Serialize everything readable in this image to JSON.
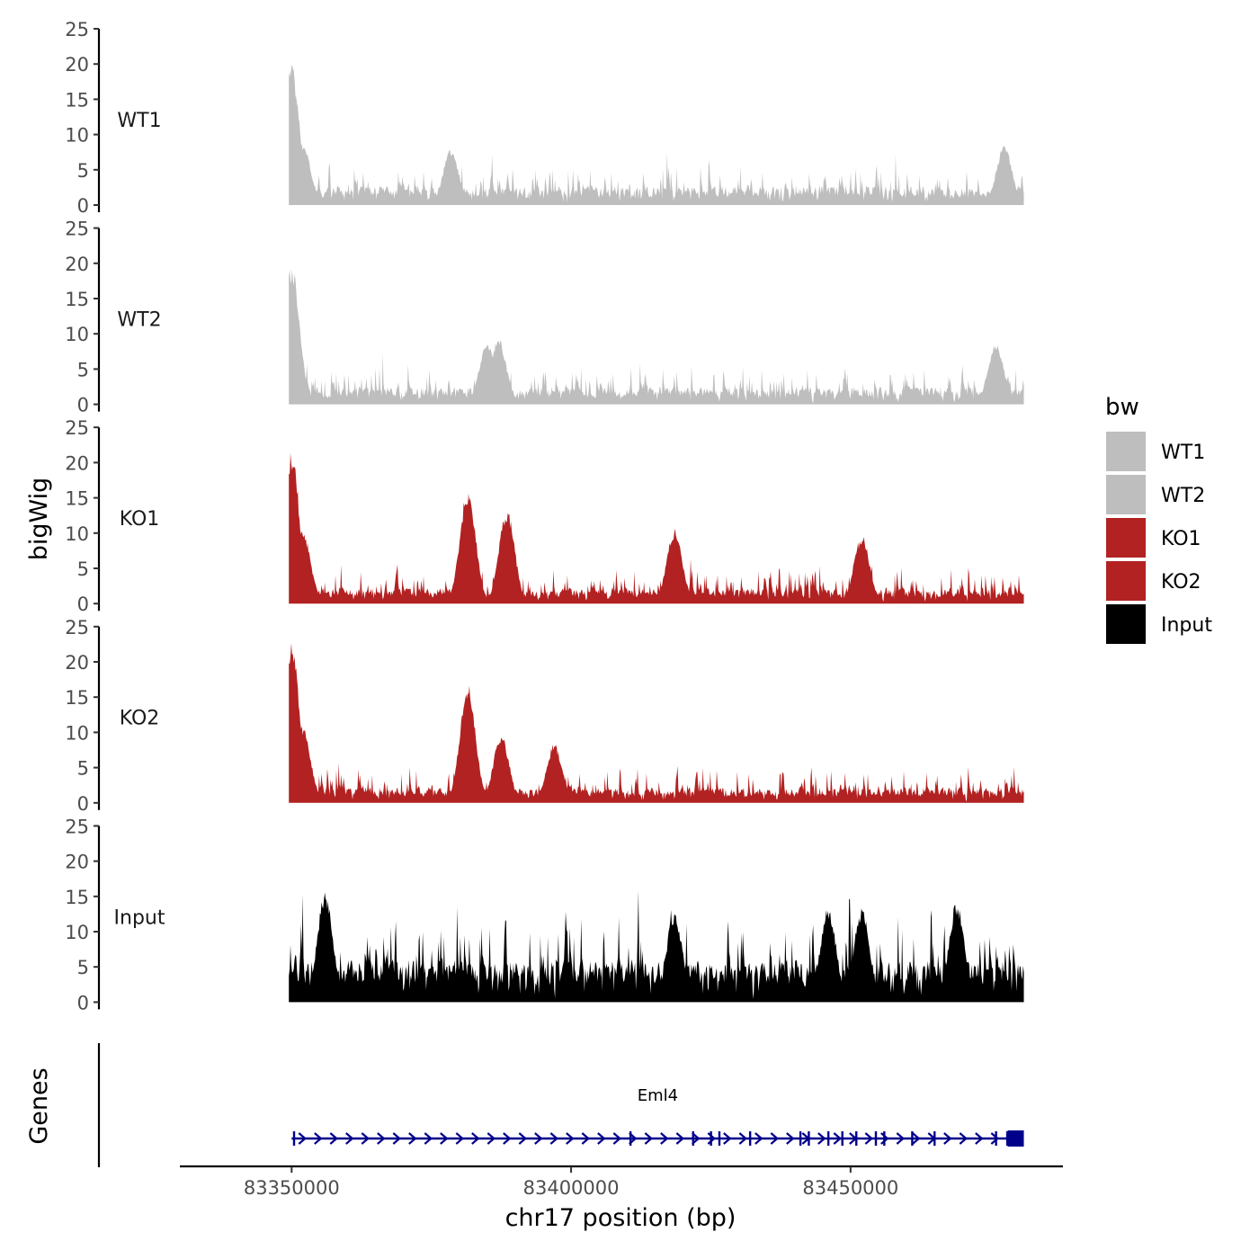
{
  "chart_data": {
    "type": "area",
    "ylabel": "bigWig",
    "xlabel": "chr17 position (bp)",
    "genes_label": "Genes",
    "gene_name": "Eml4",
    "y_ticks": [
      "0",
      "5",
      "10",
      "15",
      "20",
      "25"
    ],
    "ylim": [
      0,
      25
    ],
    "xlim": [
      83330000,
      83488000
    ],
    "data_start": 83349500,
    "data_end": 83481000,
    "x_ticks": [
      {
        "value": 83350000,
        "label": "83350000"
      },
      {
        "value": 83400000,
        "label": "83400000"
      },
      {
        "value": 83450000,
        "label": "83450000"
      }
    ],
    "legend": {
      "title": "bw",
      "items": [
        {
          "label": "WT1",
          "color": "#bebebe"
        },
        {
          "label": "WT2",
          "color": "#bebebe"
        },
        {
          "label": "KO1",
          "color": "#b22222"
        },
        {
          "label": "KO2",
          "color": "#b22222"
        },
        {
          "label": "Input",
          "color": "#000000"
        }
      ]
    },
    "series": [
      {
        "name": "WT1",
        "color": "#bebebe",
        "base": 2.2,
        "noise": 2.8,
        "seed": 11,
        "peaks": [
          {
            "x": 83350000,
            "y": 20.2
          },
          {
            "x": 83352000,
            "y": 9.0
          },
          {
            "x": 83477500,
            "y": 8.5
          },
          {
            "x": 83378500,
            "y": 8.0
          }
        ]
      },
      {
        "name": "WT2",
        "color": "#bebebe",
        "base": 2.0,
        "noise": 2.6,
        "seed": 23,
        "peaks": [
          {
            "x": 83350000,
            "y": 20.0
          },
          {
            "x": 83387000,
            "y": 9.5
          },
          {
            "x": 83385000,
            "y": 9.0
          },
          {
            "x": 83476000,
            "y": 8.8
          }
        ]
      },
      {
        "name": "KO1",
        "color": "#b22222",
        "base": 1.8,
        "noise": 2.6,
        "seed": 37,
        "peaks": [
          {
            "x": 83350000,
            "y": 22.0
          },
          {
            "x": 83352000,
            "y": 10.5
          },
          {
            "x": 83381500,
            "y": 16.5
          },
          {
            "x": 83388500,
            "y": 13.5
          },
          {
            "x": 83418500,
            "y": 10.7
          },
          {
            "x": 83452000,
            "y": 9.8
          }
        ]
      },
      {
        "name": "KO2",
        "color": "#b22222",
        "base": 1.8,
        "noise": 2.6,
        "seed": 53,
        "peaks": [
          {
            "x": 83350000,
            "y": 23.8
          },
          {
            "x": 83352000,
            "y": 11.0
          },
          {
            "x": 83381500,
            "y": 17.2
          },
          {
            "x": 83387500,
            "y": 9.8
          },
          {
            "x": 83397000,
            "y": 8.5
          }
        ]
      },
      {
        "name": "Input",
        "color": "#000000",
        "base": 5.0,
        "noise": 6.0,
        "seed": 71,
        "peaks": [
          {
            "x": 83356000,
            "y": 16.0
          },
          {
            "x": 83446000,
            "y": 13.8
          },
          {
            "x": 83469000,
            "y": 14.5
          },
          {
            "x": 83452000,
            "y": 13.5
          },
          {
            "x": 83418500,
            "y": 13.0
          }
        ]
      }
    ],
    "gene_track": {
      "start": 83350000,
      "end": 83481000,
      "strand": "+",
      "exons": [
        83350400,
        83410600,
        83421800,
        83425000,
        83426500,
        83432000,
        83441000,
        83442500,
        83446000,
        83448500,
        83451000,
        83454500,
        83456000,
        83461000,
        83465000,
        83476000,
        83478000,
        83480000
      ]
    }
  }
}
